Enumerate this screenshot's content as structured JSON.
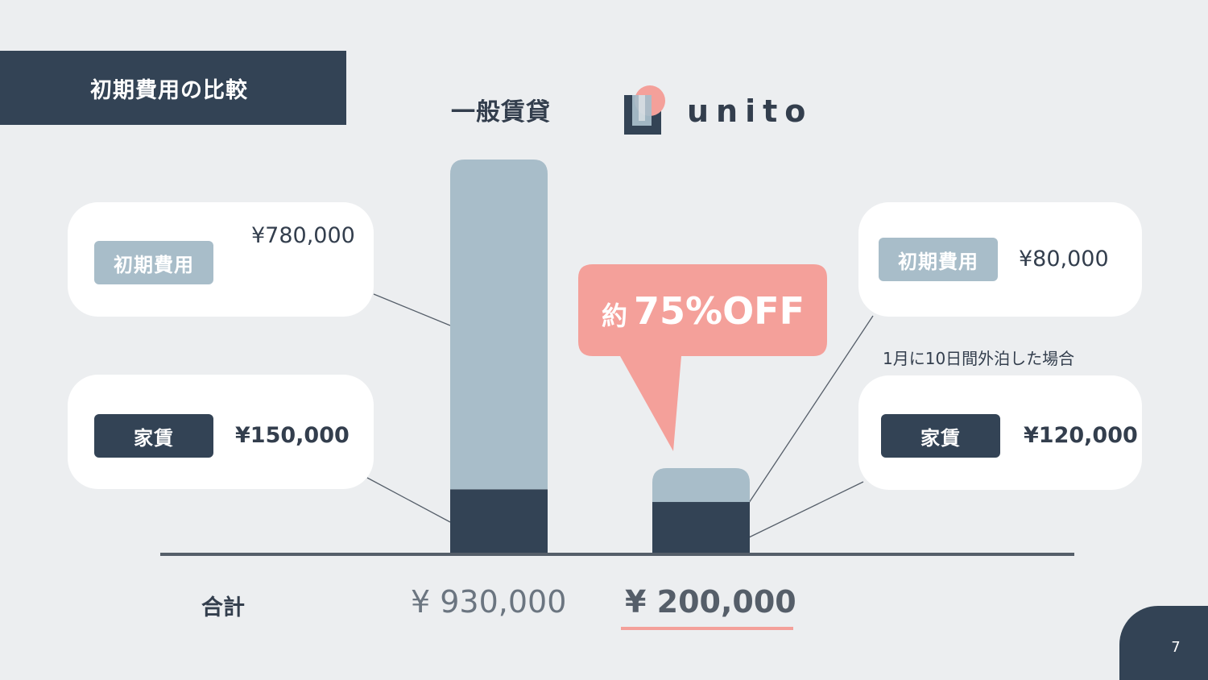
{
  "title": "初期費用の比較",
  "columns": {
    "left": "一般賃貸",
    "right": "unito"
  },
  "left_cards": {
    "initial": {
      "label": "初期費用",
      "value": "¥780,000"
    },
    "rent": {
      "label": "家賃",
      "value": "¥150,000"
    }
  },
  "right_cards": {
    "initial": {
      "label": "初期費用",
      "value": "¥80,000"
    },
    "rent": {
      "label": "家賃",
      "value": "¥120,000"
    },
    "note": "1月に10日間外泊した場合"
  },
  "callout": {
    "prefix": "約",
    "text": "75%OFF"
  },
  "totals": {
    "label": "合計",
    "left": "¥ 930,000",
    "right": "¥ 200,000"
  },
  "page_number": "7",
  "colors": {
    "navy": "#334355",
    "light_blue": "#a8bdc9",
    "coral": "#f4a09a",
    "background": "#eceef0"
  },
  "chart_data": {
    "type": "bar",
    "stacked": true,
    "categories": [
      "一般賃貸",
      "unito"
    ],
    "series": [
      {
        "name": "家賃",
        "values": [
          150000,
          120000
        ],
        "color": "#334355"
      },
      {
        "name": "初期費用",
        "values": [
          780000,
          80000
        ],
        "color": "#a8bdc9"
      }
    ],
    "ylim": [
      0,
      930000
    ],
    "grid": false
  }
}
